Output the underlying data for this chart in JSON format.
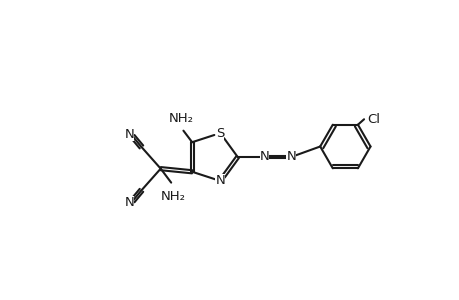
{
  "bg_color": "#ffffff",
  "line_color": "#1a1a1a",
  "line_width": 1.5,
  "font_size": 9.5,
  "figsize": [
    4.6,
    3.0
  ],
  "dpi": 100,
  "xlim": [
    0,
    13
  ],
  "ylim": [
    1.5,
    7.5
  ]
}
